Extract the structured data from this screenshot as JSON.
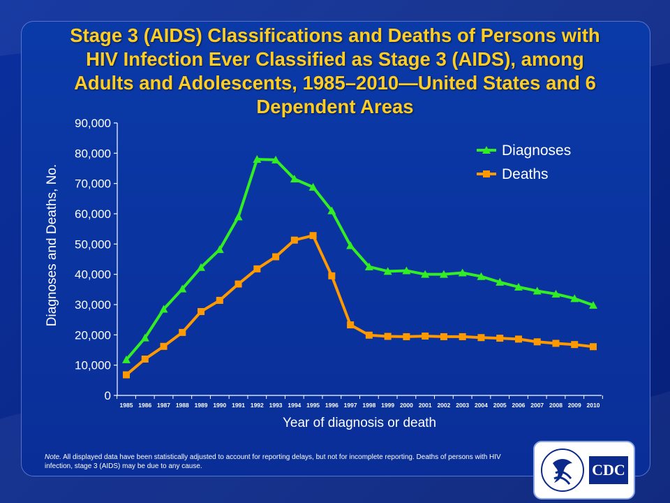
{
  "title": "Stage 3 (AIDS) Classifications and Deaths of Persons with HIV Infection Ever Classified as Stage 3 (AIDS), among Adults and Adolescents, 1985–2010—United States and 6 Dependent Areas",
  "title_lines": [
    "Stage 3 (AIDS) Classifications and Deaths of Persons with",
    "HIV Infection Ever Classified as Stage 3 (AIDS), among",
    "Adults and Adolescents, 1985–2010—United States and 6",
    "Dependent Areas"
  ],
  "note": {
    "label": "Note.",
    "text": "All displayed data have been statistically adjusted to account for reporting delays, but not for incomplete reporting. Deaths of persons with HIV infection, stage 3 (AIDS) may be due to any cause."
  },
  "logo": {
    "text": "CDC"
  },
  "colors": {
    "diagnoses": "#33ee22",
    "deaths": "#ff9900",
    "title": "#ffcc22"
  },
  "chart_data": {
    "type": "line",
    "title": "Stage 3 (AIDS) Classifications and Deaths of Persons with HIV Infection Ever Classified as Stage 3 (AIDS), among Adults and Adolescents, 1985–2010—United States and 6 Dependent Areas",
    "xlabel": "Year of diagnosis or death",
    "ylabel": "Diagnoses and Deaths, No.",
    "ylim": [
      0,
      90000
    ],
    "yticks": [
      0,
      10000,
      20000,
      30000,
      40000,
      50000,
      60000,
      70000,
      80000,
      90000
    ],
    "ytick_labels": [
      "0",
      "10,000",
      "20,000",
      "30,000",
      "40,000",
      "50,000",
      "60,000",
      "70,000",
      "80,000",
      "90,000"
    ],
    "categories": [
      "1985",
      "1986",
      "1987",
      "1988",
      "1989",
      "1990",
      "1991",
      "1992",
      "1993",
      "1994",
      "1995",
      "1996",
      "1997",
      "1998",
      "1999",
      "2000",
      "2001",
      "2002",
      "2003",
      "2004",
      "2005",
      "2006",
      "2007",
      "2008",
      "2009",
      "2010"
    ],
    "legend_position": "top-right",
    "series": [
      {
        "name": "Diagnoses",
        "marker": "triangle",
        "color": "#33ee22",
        "values": [
          11800,
          19000,
          28500,
          35200,
          42300,
          48200,
          59000,
          78000,
          77800,
          71500,
          68800,
          61000,
          49500,
          42500,
          41000,
          41200,
          40000,
          40000,
          40500,
          39300,
          37400,
          35800,
          34500,
          33500,
          32000,
          29800
        ]
      },
      {
        "name": "Deaths",
        "marker": "square",
        "color": "#ff9900",
        "values": [
          6800,
          12000,
          16200,
          20800,
          27700,
          31400,
          36800,
          41800,
          45800,
          51300,
          52800,
          39500,
          23300,
          19900,
          19500,
          19400,
          19600,
          19400,
          19400,
          19100,
          18900,
          18600,
          17700,
          17200,
          16800,
          16100
        ]
      }
    ]
  }
}
